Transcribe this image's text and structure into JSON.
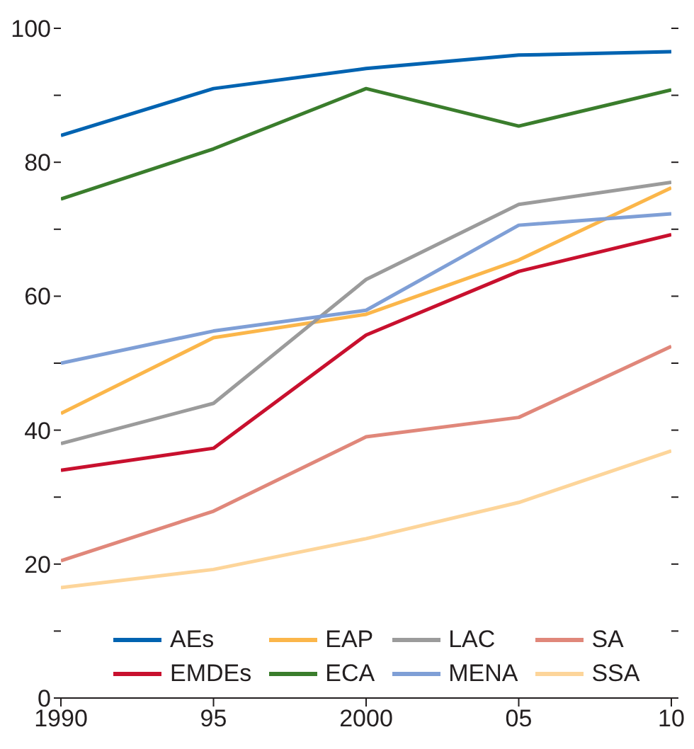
{
  "chart_data": {
    "type": "line",
    "x": [
      1990,
      1995,
      2000,
      2005,
      2010
    ],
    "xlim": [
      1990,
      2010
    ],
    "xticks": [
      {
        "value": 1990,
        "label": "1990"
      },
      {
        "value": 1995,
        "label": "95"
      },
      {
        "value": 2000,
        "label": "2000"
      },
      {
        "value": 2005,
        "label": "05"
      },
      {
        "value": 2010,
        "label": "10"
      }
    ],
    "ylim": [
      0,
      100
    ],
    "yticks": [
      0,
      {
        "value": 10,
        "label": null
      },
      20,
      {
        "value": 30,
        "label": null
      },
      40,
      {
        "value": 50,
        "label": null
      },
      60,
      {
        "value": 70,
        "label": null
      },
      80,
      {
        "value": 90,
        "label": null
      },
      100
    ],
    "grid": false,
    "legend": "bottom",
    "marker": "none",
    "line_style": "solid",
    "series": [
      {
        "name": "AEs",
        "color": "#0063b1",
        "values": [
          84,
          91,
          94,
          96,
          96.5
        ]
      },
      {
        "name": "EMDEs",
        "color": "#c8102e",
        "values": [
          34,
          37.3,
          54.2,
          63.7,
          69.2
        ]
      },
      {
        "name": "EAP",
        "color": "#fbb64a",
        "values": [
          42.5,
          53.8,
          57.3,
          65.4,
          76.2
        ]
      },
      {
        "name": "ECA",
        "color": "#3a7d2c",
        "values": [
          74.5,
          82,
          91,
          85.4,
          90.8
        ]
      },
      {
        "name": "LAC",
        "color": "#9b9b9b",
        "values": [
          38,
          44,
          62.5,
          73.7,
          77
        ]
      },
      {
        "name": "MENA",
        "color": "#7f9fd6",
        "values": [
          50,
          54.8,
          57.9,
          70.6,
          72.3
        ]
      },
      {
        "name": "SA",
        "color": "#e0877a",
        "values": [
          20.5,
          27.9,
          39,
          41.9,
          52.5
        ]
      },
      {
        "name": "SSA",
        "color": "#fdd59a",
        "values": [
          16.5,
          19.2,
          23.8,
          29.2,
          36.9
        ]
      }
    ]
  }
}
